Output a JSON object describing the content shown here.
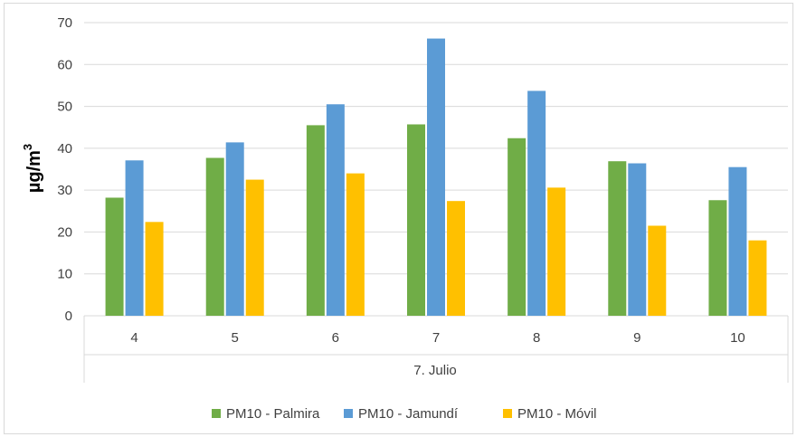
{
  "chart_data": {
    "type": "bar",
    "title": "",
    "ylabel": "µg/m",
    "ylabel_superscript": "3",
    "xlabel": "7. Julio",
    "categories": [
      "4",
      "5",
      "6",
      "7",
      "8",
      "9",
      "10"
    ],
    "ylim": [
      0,
      70
    ],
    "yticks": [
      0,
      10,
      20,
      30,
      40,
      50,
      60,
      70
    ],
    "grid": true,
    "legend_position": "bottom",
    "series": [
      {
        "name": "PM10 - Palmira",
        "color": "#70ad47",
        "values": [
          28.2,
          37.7,
          45.5,
          45.7,
          42.4,
          36.9,
          27.6
        ]
      },
      {
        "name": "PM10 - Jamundí",
        "color": "#5b9bd5",
        "values": [
          37.1,
          41.4,
          50.5,
          66.2,
          53.7,
          36.4,
          35.5
        ]
      },
      {
        "name": "PM10 - Móvil",
        "color": "#ffc000",
        "values": [
          22.4,
          32.5,
          34.0,
          27.4,
          30.6,
          21.5,
          18.0
        ]
      }
    ]
  }
}
